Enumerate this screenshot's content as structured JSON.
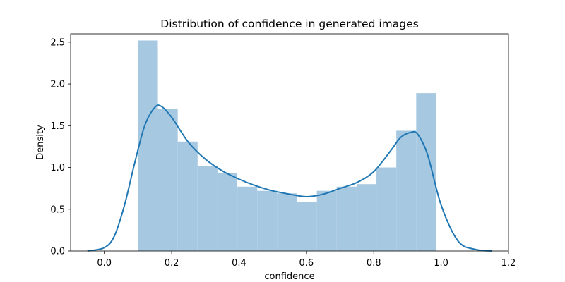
{
  "chart_data": {
    "type": "bar",
    "title": "Distribution of confidence in generated images",
    "xlabel": "confidence",
    "ylabel": "Density",
    "xlim": [
      -0.1,
      1.2
    ],
    "ylim": [
      0,
      2.6
    ],
    "xticks": [
      "0.0",
      "0.2",
      "0.4",
      "0.6",
      "0.8",
      "1.0",
      "1.2"
    ],
    "yticks": [
      "0.0",
      "0.5",
      "1.0",
      "1.5",
      "2.0",
      "2.5"
    ],
    "grid": false,
    "bar_color": "#a6c8e0",
    "line_color": "#1f77b4",
    "histogram": {
      "bin_edges": [
        0.1,
        0.159,
        0.218,
        0.277,
        0.336,
        0.395,
        0.454,
        0.513,
        0.572,
        0.631,
        0.69,
        0.749,
        0.808,
        0.867,
        0.926,
        0.985
      ],
      "density": [
        2.52,
        1.7,
        1.31,
        1.02,
        0.93,
        0.77,
        0.72,
        0.69,
        0.59,
        0.72,
        0.77,
        0.8,
        1.0,
        1.44,
        1.89
      ]
    },
    "kde": {
      "x": [
        -0.05,
        0.0,
        0.03,
        0.06,
        0.09,
        0.12,
        0.15,
        0.17,
        0.2,
        0.25,
        0.3,
        0.35,
        0.4,
        0.45,
        0.5,
        0.55,
        0.6,
        0.65,
        0.7,
        0.75,
        0.8,
        0.85,
        0.88,
        0.91,
        0.93,
        0.96,
        1.0,
        1.05,
        1.1,
        1.15
      ],
      "y": [
        0.0,
        0.04,
        0.18,
        0.55,
        1.05,
        1.5,
        1.72,
        1.73,
        1.6,
        1.3,
        1.1,
        0.96,
        0.86,
        0.78,
        0.72,
        0.68,
        0.65,
        0.68,
        0.75,
        0.82,
        0.95,
        1.2,
        1.36,
        1.42,
        1.4,
        1.15,
        0.55,
        0.12,
        0.02,
        0.0
      ]
    }
  }
}
